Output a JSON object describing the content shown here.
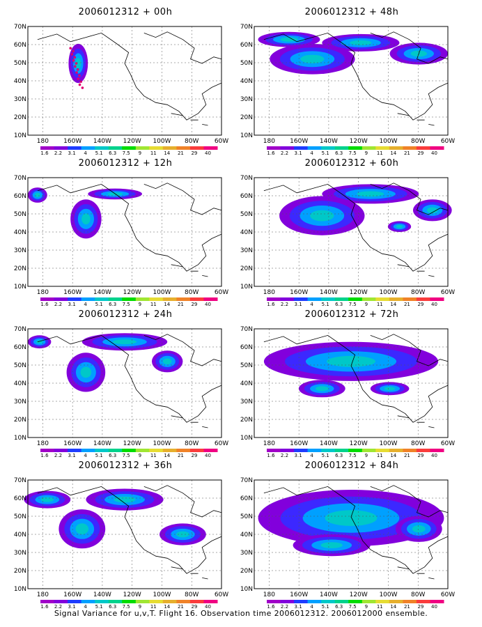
{
  "panels": [
    {
      "title": "2006012312 + 00h",
      "lead_hours": 0
    },
    {
      "title": "2006012312 + 48h",
      "lead_hours": 48
    },
    {
      "title": "2006012312 + 12h",
      "lead_hours": 12
    },
    {
      "title": "2006012312 + 60h",
      "lead_hours": 60
    },
    {
      "title": "2006012312 + 24h",
      "lead_hours": 24
    },
    {
      "title": "2006012312 + 72h",
      "lead_hours": 72
    },
    {
      "title": "2006012312 + 36h",
      "lead_hours": 36
    },
    {
      "title": "2006012312 + 84h",
      "lead_hours": 84
    }
  ],
  "axes": {
    "lat_labels": [
      "70N",
      "60N",
      "50N",
      "40N",
      "30N",
      "20N",
      "10N"
    ],
    "lon_labels": [
      "180",
      "160W",
      "140W",
      "120W",
      "100W",
      "80W",
      "60W"
    ]
  },
  "colorbar": {
    "labels": [
      "1.6",
      "2.2",
      "3.1",
      "4",
      "5.1",
      "6.3",
      "7.5",
      "9",
      "11",
      "14",
      "21",
      "29",
      "40"
    ],
    "colors": [
      "#a000c8",
      "#8200dc",
      "#1e3cff",
      "#00a0ff",
      "#00c8c8",
      "#00d28c",
      "#00dc00",
      "#a0e632",
      "#e6dc32",
      "#e6af2d",
      "#f08228",
      "#fa3c3c",
      "#f00082"
    ]
  },
  "caption": "Signal Variance for u,v,T. Flight 16. Observation time 2006012312. 2006012000 ensemble."
}
